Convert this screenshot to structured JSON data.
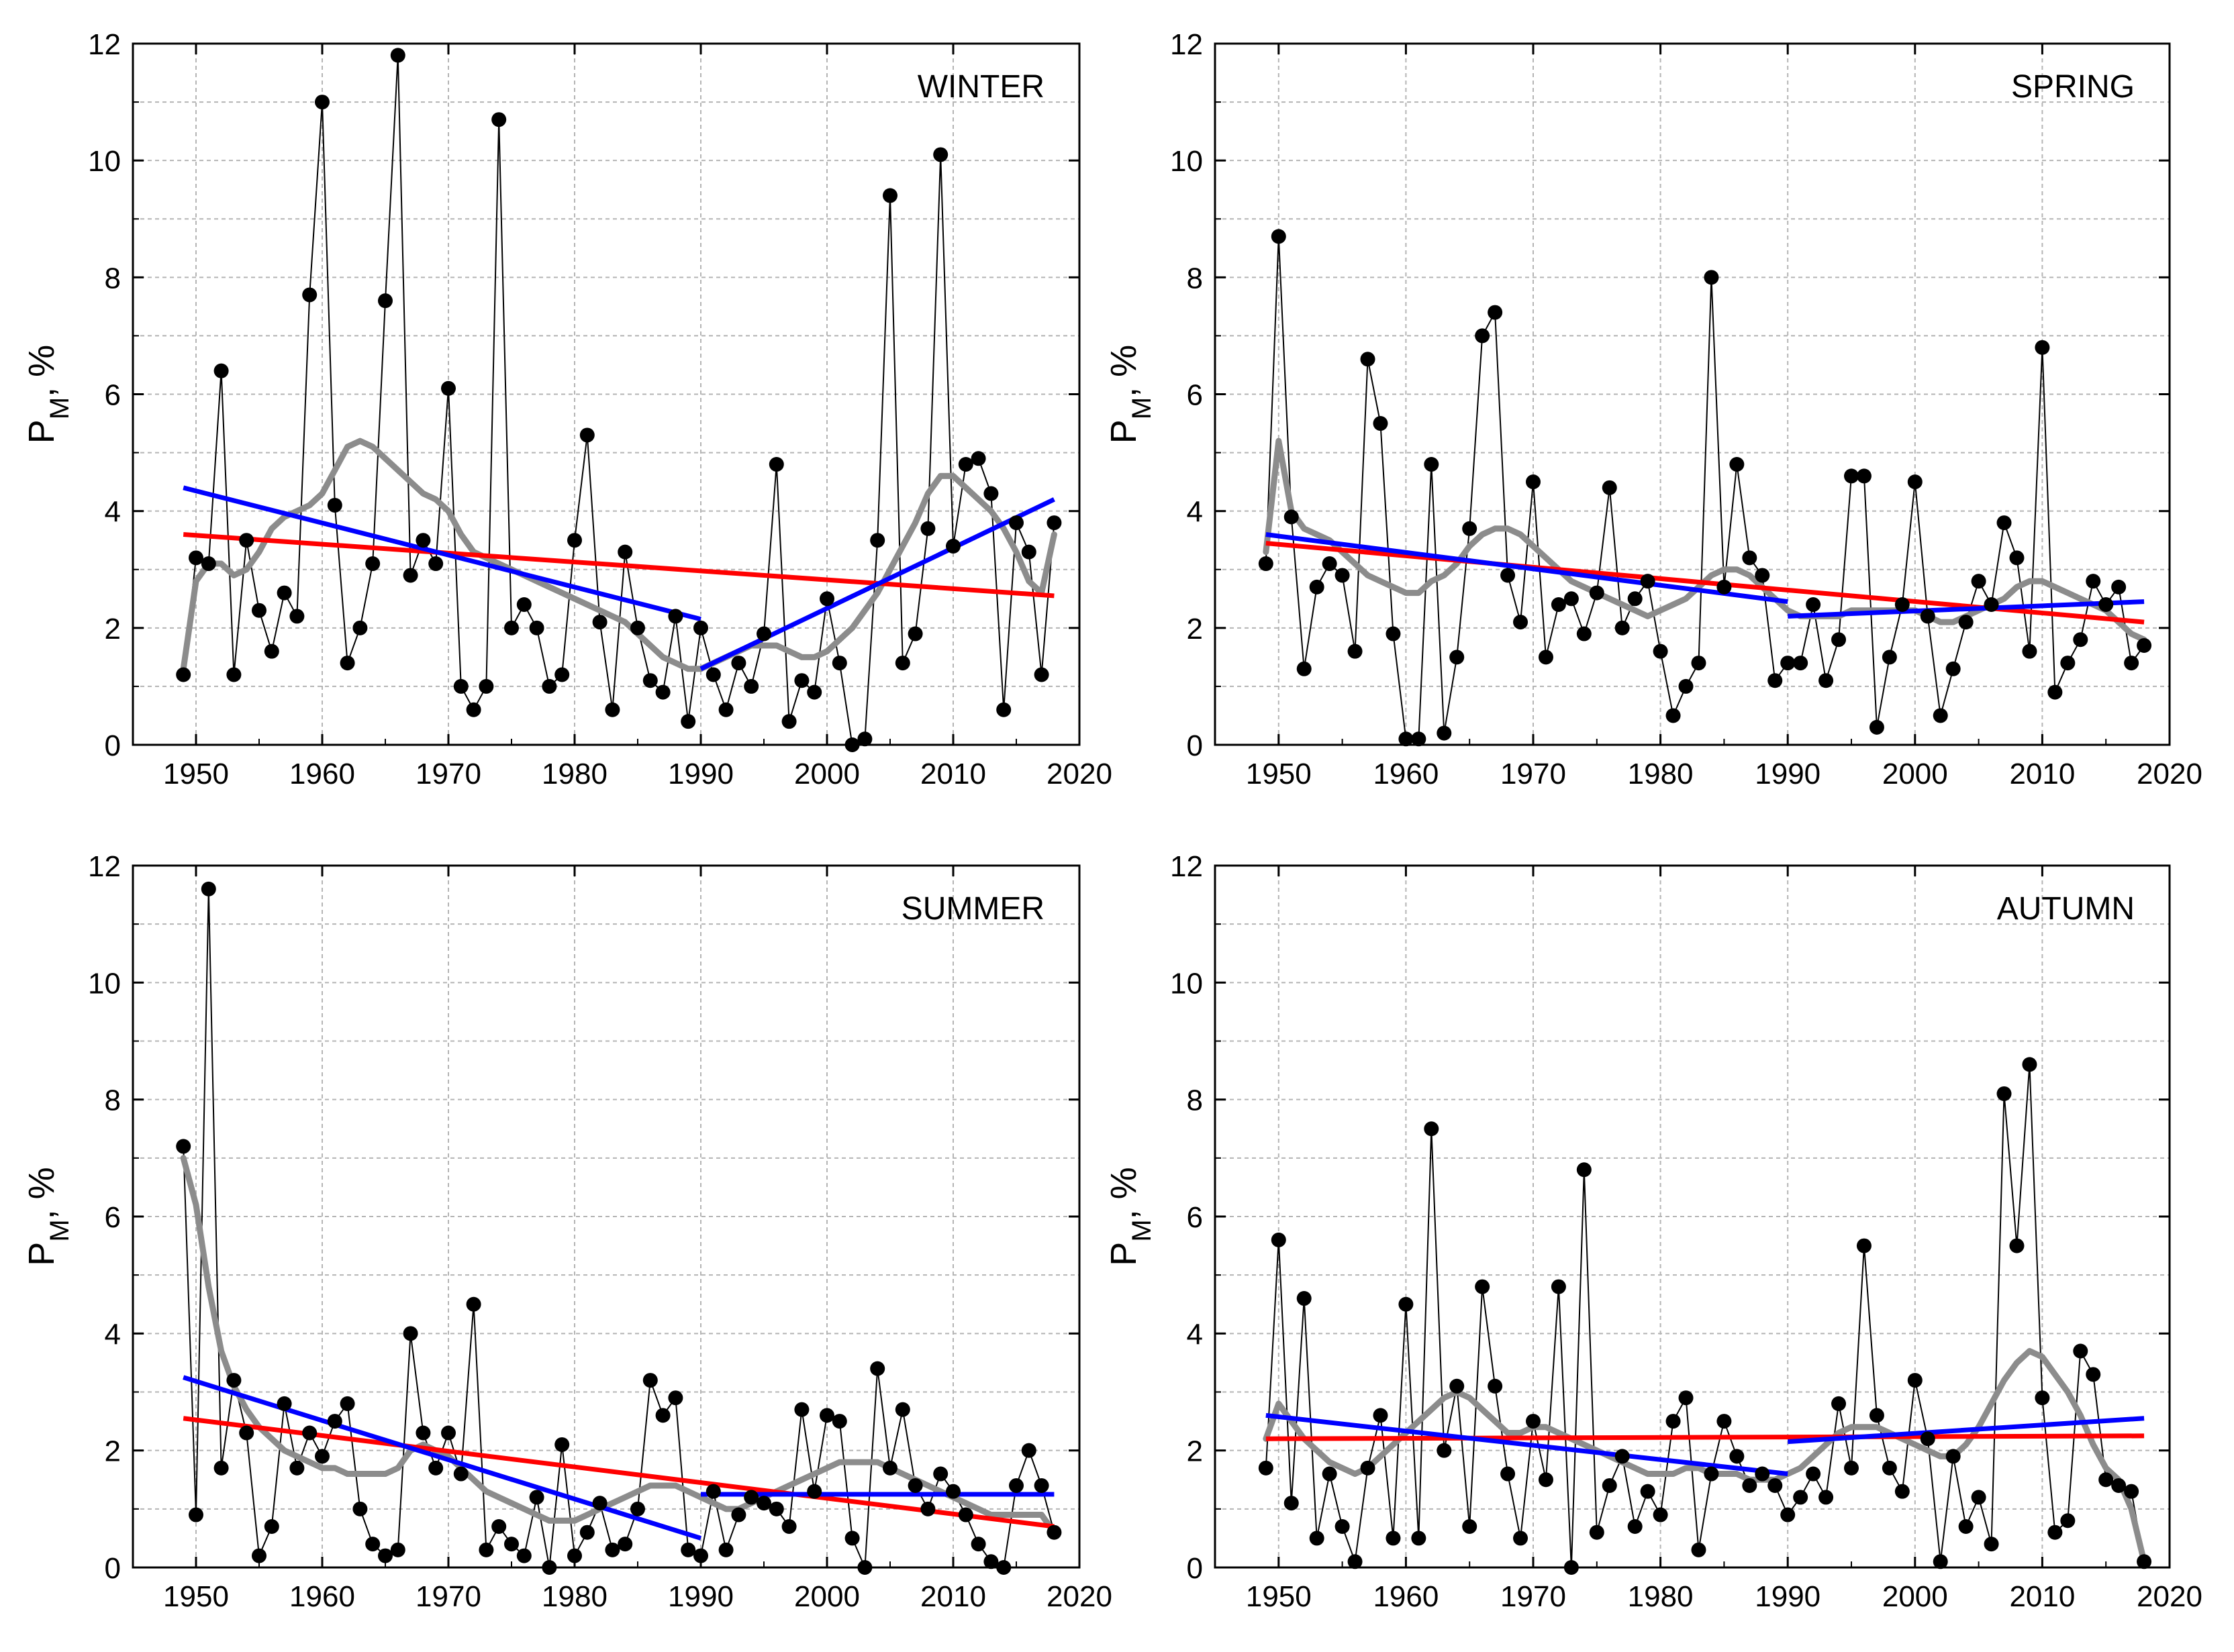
{
  "chart_data": [
    {
      "type": "line",
      "panel": "winter",
      "title": "WINTER",
      "ylabel": "P",
      "ylabel_sub": "M",
      "ylabel_suffix": ", %",
      "xlim": [
        1945,
        2020
      ],
      "ylim": [
        0,
        12
      ],
      "xticks": [
        1950,
        1960,
        1970,
        1980,
        1990,
        2000,
        2010,
        2020
      ],
      "yticks": [
        0,
        2,
        4,
        6,
        8,
        10,
        12
      ],
      "grid": true,
      "years": [
        1949,
        1950,
        1951,
        1952,
        1953,
        1954,
        1955,
        1956,
        1957,
        1958,
        1959,
        1960,
        1961,
        1962,
        1963,
        1964,
        1965,
        1966,
        1967,
        1968,
        1969,
        1970,
        1971,
        1972,
        1973,
        1974,
        1975,
        1976,
        1977,
        1978,
        1979,
        1980,
        1981,
        1982,
        1983,
        1984,
        1985,
        1986,
        1987,
        1988,
        1989,
        1990,
        1991,
        1992,
        1993,
        1994,
        1995,
        1996,
        1997,
        1998,
        1999,
        2000,
        2001,
        2002,
        2003,
        2004,
        2005,
        2006,
        2007,
        2008,
        2009,
        2010,
        2011,
        2012,
        2013,
        2014,
        2015,
        2016,
        2017,
        2018
      ],
      "values": [
        1.2,
        3.2,
        3.1,
        6.4,
        1.2,
        3.5,
        2.3,
        1.6,
        2.6,
        2.2,
        7.7,
        11.0,
        4.1,
        1.4,
        2.0,
        3.1,
        7.6,
        11.8,
        2.9,
        3.5,
        3.1,
        6.1,
        1.0,
        0.6,
        1.0,
        10.7,
        2.0,
        2.4,
        2.0,
        1.0,
        1.2,
        3.5,
        5.3,
        2.1,
        0.6,
        3.3,
        2.0,
        1.1,
        0.9,
        2.2,
        0.4,
        2.0,
        1.2,
        0.6,
        1.4,
        1.0,
        1.9,
        4.8,
        0.4,
        1.1,
        0.9,
        2.5,
        1.4,
        0.0,
        0.1,
        3.5,
        9.4,
        1.4,
        1.9,
        3.7,
        10.1,
        3.4,
        4.8,
        4.9,
        4.3,
        0.6,
        3.8,
        3.3,
        1.2,
        3.8
      ],
      "smooth": [
        1.3,
        2.8,
        3.1,
        3.1,
        2.9,
        3.0,
        3.3,
        3.7,
        3.9,
        4.0,
        4.1,
        4.3,
        4.7,
        5.1,
        5.2,
        5.1,
        4.9,
        4.7,
        4.5,
        4.3,
        4.2,
        4.0,
        3.6,
        3.3,
        3.2,
        3.1,
        3.0,
        2.9,
        2.8,
        2.7,
        2.6,
        2.5,
        2.4,
        2.3,
        2.2,
        2.1,
        1.9,
        1.7,
        1.5,
        1.4,
        1.3,
        1.3,
        1.4,
        1.5,
        1.6,
        1.7,
        1.7,
        1.7,
        1.6,
        1.5,
        1.5,
        1.6,
        1.8,
        2.0,
        2.3,
        2.6,
        3.0,
        3.4,
        3.8,
        4.3,
        4.6,
        4.6,
        4.4,
        4.2,
        4.0,
        3.7,
        3.3,
        2.8,
        2.6,
        3.6
      ],
      "trend_full": {
        "x": [
          1949,
          2018
        ],
        "y": [
          3.6,
          2.55
        ]
      },
      "trend_segments": [
        {
          "x": [
            1949,
            1990
          ],
          "y": [
            4.4,
            2.15
          ]
        },
        {
          "x": [
            1990,
            2018
          ],
          "y": [
            1.3,
            4.2
          ]
        }
      ],
      "colors": {
        "points": "#000000",
        "smooth": "#8c8c8c",
        "trend_full": "#ff0000",
        "trend_segments": "#0000ff"
      }
    },
    {
      "type": "line",
      "panel": "spring",
      "title": "SPRING",
      "ylabel": "P",
      "ylabel_sub": "M",
      "ylabel_suffix": ", %",
      "xlim": [
        1945,
        2020
      ],
      "ylim": [
        0,
        12
      ],
      "xticks": [
        1950,
        1960,
        1970,
        1980,
        1990,
        2000,
        2010,
        2020
      ],
      "yticks": [
        0,
        2,
        4,
        6,
        8,
        10,
        12
      ],
      "grid": true,
      "years": [
        1949,
        1950,
        1951,
        1952,
        1953,
        1954,
        1955,
        1956,
        1957,
        1958,
        1959,
        1960,
        1961,
        1962,
        1963,
        1964,
        1965,
        1966,
        1967,
        1968,
        1969,
        1970,
        1971,
        1972,
        1973,
        1974,
        1975,
        1976,
        1977,
        1978,
        1979,
        1980,
        1981,
        1982,
        1983,
        1984,
        1985,
        1986,
        1987,
        1988,
        1989,
        1990,
        1991,
        1992,
        1993,
        1994,
        1995,
        1996,
        1997,
        1998,
        1999,
        2000,
        2001,
        2002,
        2003,
        2004,
        2005,
        2006,
        2007,
        2008,
        2009,
        2010,
        2011,
        2012,
        2013,
        2014,
        2015,
        2016,
        2017,
        2018
      ],
      "values": [
        3.1,
        8.7,
        3.9,
        1.3,
        2.7,
        3.1,
        2.9,
        1.6,
        6.6,
        5.5,
        1.9,
        0.1,
        0.1,
        4.8,
        0.2,
        1.5,
        3.7,
        7.0,
        7.4,
        2.9,
        2.1,
        4.5,
        1.5,
        2.4,
        2.5,
        1.9,
        2.6,
        4.4,
        2.0,
        2.5,
        2.8,
        1.6,
        0.5,
        1.0,
        1.4,
        8.0,
        2.7,
        4.8,
        3.2,
        2.9,
        1.1,
        1.4,
        1.4,
        2.4,
        1.1,
        1.8,
        4.6,
        4.6,
        0.3,
        1.5,
        2.4,
        4.5,
        2.2,
        0.5,
        1.3,
        2.1,
        2.8,
        2.4,
        3.8,
        3.2,
        1.6,
        6.8,
        0.9,
        1.4,
        1.8,
        2.8,
        2.4,
        2.7,
        1.4,
        1.7
      ],
      "smooth": [
        3.3,
        5.2,
        4.0,
        3.7,
        3.6,
        3.5,
        3.3,
        3.1,
        2.9,
        2.8,
        2.7,
        2.6,
        2.6,
        2.8,
        2.9,
        3.1,
        3.4,
        3.6,
        3.7,
        3.7,
        3.6,
        3.4,
        3.2,
        3.0,
        2.8,
        2.7,
        2.6,
        2.5,
        2.4,
        2.3,
        2.2,
        2.3,
        2.4,
        2.5,
        2.7,
        2.9,
        3.0,
        3.0,
        2.9,
        2.7,
        2.5,
        2.3,
        2.2,
        2.2,
        2.2,
        2.2,
        2.3,
        2.3,
        2.3,
        2.3,
        2.3,
        2.3,
        2.2,
        2.1,
        2.1,
        2.2,
        2.3,
        2.4,
        2.5,
        2.7,
        2.8,
        2.8,
        2.7,
        2.6,
        2.5,
        2.4,
        2.3,
        2.1,
        1.9,
        1.8
      ],
      "trend_full": {
        "x": [
          1949,
          2018
        ],
        "y": [
          3.45,
          2.1
        ]
      },
      "trend_segments": [
        {
          "x": [
            1949,
            1990
          ],
          "y": [
            3.6,
            2.45
          ]
        },
        {
          "x": [
            1990,
            2018
          ],
          "y": [
            2.2,
            2.45
          ]
        }
      ],
      "colors": {
        "points": "#000000",
        "smooth": "#8c8c8c",
        "trend_full": "#ff0000",
        "trend_segments": "#0000ff"
      }
    },
    {
      "type": "line",
      "panel": "summer",
      "title": "SUMMER",
      "ylabel": "P",
      "ylabel_sub": "M",
      "ylabel_suffix": ", %",
      "xlim": [
        1945,
        2020
      ],
      "ylim": [
        0,
        12
      ],
      "xticks": [
        1950,
        1960,
        1970,
        1980,
        1990,
        2000,
        2010,
        2020
      ],
      "yticks": [
        0,
        2,
        4,
        6,
        8,
        10,
        12
      ],
      "grid": true,
      "years": [
        1949,
        1950,
        1951,
        1952,
        1953,
        1954,
        1955,
        1956,
        1957,
        1958,
        1959,
        1960,
        1961,
        1962,
        1963,
        1964,
        1965,
        1966,
        1967,
        1968,
        1969,
        1970,
        1971,
        1972,
        1973,
        1974,
        1975,
        1976,
        1977,
        1978,
        1979,
        1980,
        1981,
        1982,
        1983,
        1984,
        1985,
        1986,
        1987,
        1988,
        1989,
        1990,
        1991,
        1992,
        1993,
        1994,
        1995,
        1996,
        1997,
        1998,
        1999,
        2000,
        2001,
        2002,
        2003,
        2004,
        2005,
        2006,
        2007,
        2008,
        2009,
        2010,
        2011,
        2012,
        2013,
        2014,
        2015,
        2016,
        2017,
        2018
      ],
      "values": [
        7.2,
        0.9,
        11.6,
        1.7,
        3.2,
        2.3,
        0.2,
        0.7,
        2.8,
        1.7,
        2.3,
        1.9,
        2.5,
        2.8,
        1.0,
        0.4,
        0.2,
        0.3,
        4.0,
        2.3,
        1.7,
        2.3,
        1.6,
        4.5,
        0.3,
        0.7,
        0.4,
        0.2,
        1.2,
        0.0,
        2.1,
        0.2,
        0.6,
        1.1,
        0.3,
        0.4,
        1.0,
        3.2,
        2.6,
        2.9,
        0.3,
        0.2,
        1.3,
        0.3,
        0.9,
        1.2,
        1.1,
        1.0,
        0.7,
        2.7,
        1.3,
        2.6,
        2.5,
        0.5,
        0.0,
        3.4,
        1.7,
        2.7,
        1.4,
        1.0,
        1.6,
        1.3,
        0.9,
        0.4,
        0.1,
        0.0,
        1.4,
        2.0,
        1.4,
        0.6
      ],
      "smooth": [
        7.0,
        6.2,
        4.8,
        3.7,
        3.1,
        2.7,
        2.4,
        2.2,
        2.0,
        1.9,
        1.8,
        1.7,
        1.7,
        1.6,
        1.6,
        1.6,
        1.6,
        1.7,
        2.0,
        2.1,
        2.0,
        1.9,
        1.7,
        1.5,
        1.3,
        1.2,
        1.1,
        1.0,
        0.9,
        0.8,
        0.8,
        0.8,
        0.9,
        1.0,
        1.1,
        1.2,
        1.3,
        1.4,
        1.4,
        1.4,
        1.3,
        1.2,
        1.1,
        1.0,
        1.0,
        1.1,
        1.2,
        1.3,
        1.4,
        1.5,
        1.6,
        1.7,
        1.8,
        1.8,
        1.8,
        1.8,
        1.7,
        1.6,
        1.5,
        1.4,
        1.3,
        1.2,
        1.1,
        1.0,
        0.9,
        0.9,
        0.9,
        0.9,
        0.9,
        0.6
      ],
      "trend_full": {
        "x": [
          1949,
          2018
        ],
        "y": [
          2.55,
          0.7
        ]
      },
      "trend_segments": [
        {
          "x": [
            1949,
            1990
          ],
          "y": [
            3.25,
            0.5
          ]
        },
        {
          "x": [
            1990,
            2018
          ],
          "y": [
            1.25,
            1.25
          ]
        }
      ],
      "colors": {
        "points": "#000000",
        "smooth": "#8c8c8c",
        "trend_full": "#ff0000",
        "trend_segments": "#0000ff"
      }
    },
    {
      "type": "line",
      "panel": "autumn",
      "title": "AUTUMN",
      "ylabel": "P",
      "ylabel_sub": "M",
      "ylabel_suffix": ", %",
      "xlim": [
        1945,
        2020
      ],
      "ylim": [
        0,
        12
      ],
      "xticks": [
        1950,
        1960,
        1970,
        1980,
        1990,
        2000,
        2010,
        2020
      ],
      "yticks": [
        0,
        2,
        4,
        6,
        8,
        10,
        12
      ],
      "grid": true,
      "years": [
        1949,
        1950,
        1951,
        1952,
        1953,
        1954,
        1955,
        1956,
        1957,
        1958,
        1959,
        1960,
        1961,
        1962,
        1963,
        1964,
        1965,
        1966,
        1967,
        1968,
        1969,
        1970,
        1971,
        1972,
        1973,
        1974,
        1975,
        1976,
        1977,
        1978,
        1979,
        1980,
        1981,
        1982,
        1983,
        1984,
        1985,
        1986,
        1987,
        1988,
        1989,
        1990,
        1991,
        1992,
        1993,
        1994,
        1995,
        1996,
        1997,
        1998,
        1999,
        2000,
        2001,
        2002,
        2003,
        2004,
        2005,
        2006,
        2007,
        2008,
        2009,
        2010,
        2011,
        2012,
        2013,
        2014,
        2015,
        2016,
        2017,
        2018
      ],
      "values": [
        1.7,
        5.6,
        1.1,
        4.6,
        0.5,
        1.6,
        0.7,
        0.1,
        1.7,
        2.6,
        0.5,
        4.5,
        0.5,
        7.5,
        2.0,
        3.1,
        0.7,
        4.8,
        3.1,
        1.6,
        0.5,
        2.5,
        1.5,
        4.8,
        0.0,
        6.8,
        0.6,
        1.4,
        1.9,
        0.7,
        1.3,
        0.9,
        2.5,
        2.9,
        0.3,
        1.6,
        2.5,
        1.9,
        1.4,
        1.6,
        1.4,
        0.9,
        1.2,
        1.6,
        1.2,
        2.8,
        1.7,
        5.5,
        2.6,
        1.7,
        1.3,
        3.2,
        2.2,
        0.1,
        1.9,
        0.7,
        1.2,
        0.4,
        8.1,
        5.5,
        8.6,
        2.9,
        0.6,
        0.8,
        3.7,
        3.3,
        1.5,
        1.4,
        1.3,
        0.1
      ],
      "smooth": [
        2.2,
        2.8,
        2.5,
        2.2,
        2.0,
        1.8,
        1.7,
        1.6,
        1.7,
        1.9,
        2.1,
        2.3,
        2.5,
        2.7,
        2.9,
        3.0,
        2.9,
        2.7,
        2.5,
        2.3,
        2.3,
        2.4,
        2.4,
        2.3,
        2.2,
        2.1,
        2.0,
        1.9,
        1.8,
        1.7,
        1.6,
        1.6,
        1.6,
        1.7,
        1.7,
        1.6,
        1.6,
        1.6,
        1.5,
        1.5,
        1.5,
        1.6,
        1.7,
        1.9,
        2.1,
        2.3,
        2.4,
        2.4,
        2.4,
        2.3,
        2.2,
        2.1,
        2.0,
        1.9,
        1.9,
        2.1,
        2.4,
        2.8,
        3.2,
        3.5,
        3.7,
        3.6,
        3.3,
        3.0,
        2.6,
        2.1,
        1.7,
        1.5,
        1.0,
        0.1
      ],
      "trend_full": {
        "x": [
          1949,
          2018
        ],
        "y": [
          2.2,
          2.25
        ]
      },
      "trend_segments": [
        {
          "x": [
            1949,
            1990
          ],
          "y": [
            2.6,
            1.6
          ]
        },
        {
          "x": [
            1990,
            2018
          ],
          "y": [
            2.15,
            2.55
          ]
        }
      ],
      "colors": {
        "points": "#000000",
        "smooth": "#8c8c8c",
        "trend_full": "#ff0000",
        "trend_segments": "#0000ff"
      }
    }
  ]
}
